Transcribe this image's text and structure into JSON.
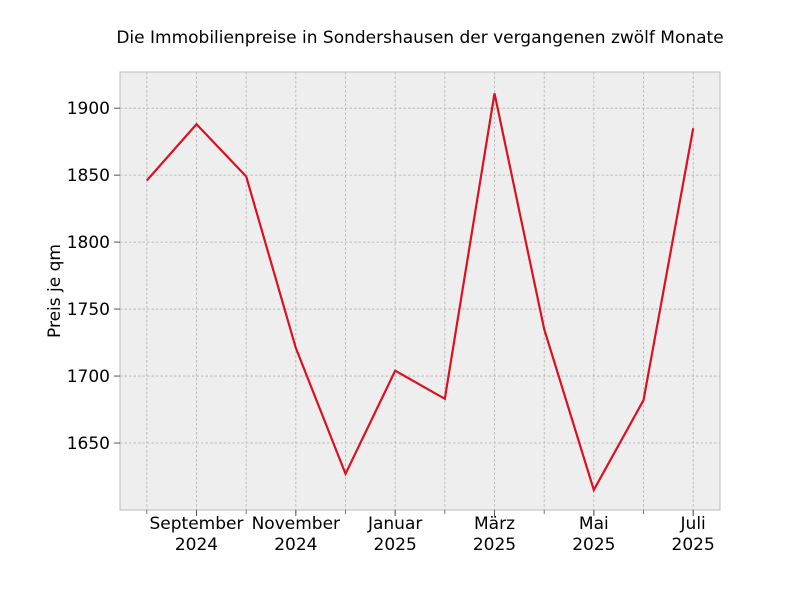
{
  "chart_data": {
    "type": "line",
    "title": "Die Immobilienpreise in Sondershausen der vergangenen zwölf Monate",
    "xlabel": "",
    "ylabel": "Preis je qm",
    "x": [
      "2024-08",
      "2024-09",
      "2024-10",
      "2024-11",
      "2024-12",
      "2025-01",
      "2025-02",
      "2025-03",
      "2025-04",
      "2025-05",
      "2025-06",
      "2025-07"
    ],
    "series": [
      {
        "values": [
          1846,
          1888,
          1849,
          1721,
          1627,
          1704,
          1683,
          1911,
          1735,
          1615,
          1682,
          1885
        ],
        "color": "#dc1020"
      }
    ],
    "x_ticks": [
      {
        "x": "2024-09",
        "line1": "September",
        "line2": "2024"
      },
      {
        "x": "2024-11",
        "line1": "November",
        "line2": "2024"
      },
      {
        "x": "2025-01",
        "line1": "Januar",
        "line2": "2025"
      },
      {
        "x": "2025-03",
        "line1": "März",
        "line2": "2025"
      },
      {
        "x": "2025-05",
        "line1": "Mai",
        "line2": "2025"
      },
      {
        "x": "2025-07",
        "line1": "Juli",
        "line2": "2025"
      }
    ],
    "y_ticks": [
      1650,
      1700,
      1750,
      1800,
      1850,
      1900
    ],
    "ylim": [
      1600,
      1927
    ],
    "grid": true,
    "colors": {
      "background": "#eeeeee",
      "grid": "#b0b0b0",
      "spine": "#bcbcbc"
    }
  }
}
